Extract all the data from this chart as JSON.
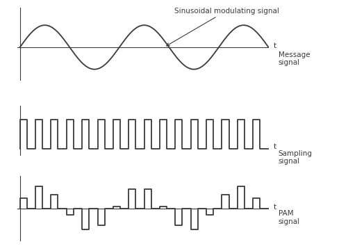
{
  "background_color": "#ffffff",
  "line_color": "#3a3a3a",
  "text_color": "#3a3a3a",
  "sinusoid_freq": 2.5,
  "n_pulses": 16,
  "pulse_duty": 0.45,
  "panel1_annotation": "Sinusoidal modulating signal",
  "panel1_t_label": "t",
  "panel1_signal_label": "Message\nsignal",
  "panel2_t_label": "t",
  "panel2_signal_label": "Sampling\nsignal",
  "panel3_t_label": "t",
  "panel3_signal_label": "PAM\nsignal",
  "fs_label": 7.5,
  "lw_signal": 1.3,
  "lw_axis": 0.8
}
